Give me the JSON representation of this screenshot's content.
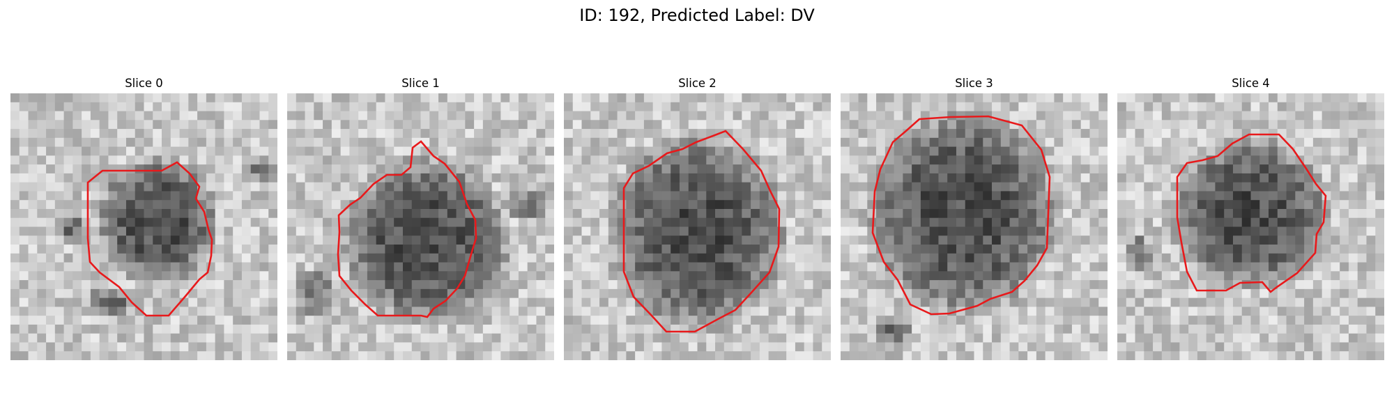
{
  "figure": {
    "title": "ID: 192, Predicted Label: DV"
  },
  "colors": {
    "contour": "#e8191b",
    "background": "#ffffff"
  },
  "panels": [
    {
      "title": "Slice 0"
    },
    {
      "title": "Slice 1"
    },
    {
      "title": "Slice 2"
    },
    {
      "title": "Slice 3"
    },
    {
      "title": "Slice 4"
    }
  ]
}
